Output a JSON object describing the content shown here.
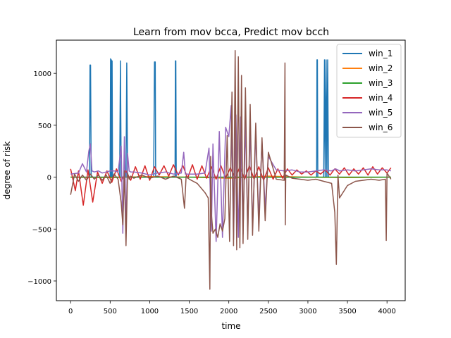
{
  "chart_data": {
    "type": "line",
    "title": "Learn from mov bcca, Predict mov bcch",
    "xlabel": "time",
    "ylabel": "degree of risk",
    "xlim": [
      -180,
      4230
    ],
    "ylim": [
      -1190,
      1320
    ],
    "xticks": [
      0,
      500,
      1000,
      1500,
      2000,
      2500,
      3000,
      3500,
      4000
    ],
    "yticks": [
      -1000,
      -500,
      0,
      500,
      1000
    ],
    "xtick_labels": [
      "0",
      "500",
      "1000",
      "1500",
      "2000",
      "2500",
      "3000",
      "3500",
      "4000"
    ],
    "ytick_labels": [
      "−1000",
      "−500",
      "0",
      "500",
      "1000"
    ],
    "grid": false,
    "legend_position": "top-right",
    "series": [
      {
        "name": "win_1",
        "color": "#1f77b4",
        "x": [
          0,
          240,
          245,
          252,
          260,
          500,
          505,
          510,
          515,
          520,
          525,
          530,
          620,
          630,
          640,
          700,
          710,
          720,
          1050,
          1060,
          1065,
          1070,
          1075,
          1320,
          1325,
          1330,
          1335,
          3110,
          3115,
          3120,
          3125,
          3200,
          3210,
          3220,
          3230,
          3240,
          3250,
          3260,
          4050
        ],
        "y": [
          0,
          0,
          1080,
          1080,
          0,
          0,
          1140,
          0,
          1130,
          0,
          1120,
          0,
          0,
          1120,
          0,
          0,
          1100,
          0,
          0,
          1110,
          1110,
          1110,
          0,
          0,
          1120,
          1120,
          0,
          0,
          1130,
          1130,
          0,
          0,
          1130,
          0,
          1130,
          0,
          1130,
          0,
          0
        ]
      },
      {
        "name": "win_2",
        "color": "#ff7f0e",
        "x": [
          0,
          500,
          1000,
          1500,
          2000,
          2500,
          3000,
          3500,
          4050
        ],
        "y": [
          0,
          -5,
          5,
          0,
          -10,
          10,
          0,
          -5,
          0
        ]
      },
      {
        "name": "win_3",
        "color": "#2ca02c",
        "x": [
          0,
          1000,
          2000,
          3000,
          4050
        ],
        "y": [
          0,
          0,
          0,
          0,
          0
        ]
      },
      {
        "name": "win_4",
        "color": "#d62728",
        "x": [
          0,
          60,
          100,
          160,
          220,
          280,
          340,
          400,
          460,
          520,
          580,
          640,
          700,
          760,
          820,
          880,
          940,
          1000,
          1060,
          1120,
          1180,
          1240,
          1300,
          1360,
          1420,
          1480,
          1540,
          1600,
          1660,
          1720,
          1780,
          1840,
          1900,
          1960,
          2020,
          2080,
          2140,
          2200,
          2260,
          2320,
          2380,
          2440,
          2500,
          2560,
          2620,
          2680,
          2740,
          2800,
          2860,
          2920,
          2980,
          3040,
          3100,
          3160,
          3220,
          3280,
          3340,
          3400,
          3460,
          3520,
          3580,
          3640,
          3700,
          3760,
          3820,
          3880,
          3940,
          4000,
          4050
        ],
        "y": [
          80,
          -130,
          60,
          -270,
          70,
          -240,
          50,
          -60,
          60,
          -50,
          80,
          -40,
          60,
          -30,
          100,
          -20,
          110,
          -30,
          100,
          20,
          110,
          10,
          120,
          20,
          110,
          -10,
          120,
          -20,
          110,
          -10,
          100,
          -20,
          110,
          -10,
          90,
          -10,
          100,
          -20,
          110,
          -20,
          100,
          -30,
          90,
          -20,
          80,
          -10,
          80,
          20,
          70,
          30,
          60,
          20,
          60,
          30,
          70,
          20,
          80,
          30,
          90,
          20,
          80,
          30,
          90,
          20,
          100,
          30,
          90,
          40,
          90
        ]
      },
      {
        "name": "win_5",
        "color": "#9467bd",
        "x": [
          0,
          100,
          150,
          200,
          230,
          250,
          270,
          300,
          350,
          400,
          450,
          500,
          550,
          600,
          640,
          660,
          680,
          700,
          720,
          740,
          760,
          800,
          900,
          1000,
          1100,
          1200,
          1300,
          1400,
          1430,
          1450,
          1500,
          1600,
          1700,
          1750,
          1780,
          1800,
          1840,
          1880,
          1920,
          1960,
          2000,
          2030,
          2060,
          2090,
          2120,
          2150,
          2180,
          2210,
          2240,
          2270,
          2300,
          2340,
          2380,
          2420,
          2460,
          2500,
          2600,
          2700,
          2800,
          2900,
          3000,
          3100,
          3200,
          3300,
          3350,
          3380,
          3400,
          3500,
          3600,
          3700,
          3800,
          3900,
          4000,
          4050
        ],
        "y": [
          30,
          40,
          130,
          50,
          250,
          320,
          60,
          50,
          60,
          40,
          50,
          60,
          60,
          50,
          300,
          -540,
          390,
          -520,
          230,
          60,
          50,
          50,
          40,
          20,
          40,
          50,
          30,
          40,
          240,
          30,
          30,
          30,
          40,
          280,
          -520,
          320,
          -620,
          440,
          -580,
          480,
          390,
          690,
          -600,
          600,
          -580,
          580,
          -550,
          540,
          -520,
          500,
          -480,
          420,
          -400,
          340,
          -300,
          200,
          70,
          60,
          70,
          50,
          50,
          60,
          70,
          60,
          80,
          70,
          60,
          70,
          60,
          70,
          80,
          70,
          70,
          60
        ]
      },
      {
        "name": "win_6",
        "color": "#8c564b",
        "x": [
          0,
          50,
          100,
          150,
          200,
          250,
          300,
          350,
          400,
          450,
          500,
          550,
          600,
          640,
          660,
          680,
          700,
          720,
          740,
          760,
          800,
          900,
          1000,
          1100,
          1200,
          1300,
          1400,
          1440,
          1460,
          1500,
          1600,
          1700,
          1740,
          1760,
          1770,
          1780,
          1800,
          1830,
          1860,
          1890,
          1920,
          1950,
          1980,
          2010,
          2040,
          2060,
          2080,
          2100,
          2120,
          2140,
          2160,
          2180,
          2210,
          2240,
          2270,
          2300,
          2340,
          2380,
          2420,
          2460,
          2500,
          2600,
          2700,
          2710,
          2715,
          2720,
          2800,
          2900,
          3000,
          3100,
          3200,
          3300,
          3340,
          3360,
          3380,
          3400,
          3500,
          3600,
          3700,
          3800,
          3900,
          3980,
          3990,
          4000,
          4050
        ],
        "y": [
          -170,
          30,
          -40,
          20,
          -30,
          30,
          -20,
          20,
          -30,
          20,
          -60,
          30,
          -20,
          -250,
          -460,
          60,
          -660,
          40,
          -20,
          10,
          -10,
          20,
          -10,
          10,
          -20,
          10,
          -20,
          -300,
          10,
          -20,
          -60,
          -150,
          -200,
          -1080,
          200,
          -350,
          -540,
          -500,
          -580,
          -450,
          -520,
          -400,
          400,
          -620,
          820,
          -660,
          1220,
          -700,
          1160,
          -680,
          980,
          -640,
          860,
          -600,
          700,
          -560,
          520,
          -520,
          380,
          -420,
          240,
          -20,
          -30,
          1100,
          -460,
          20,
          -10,
          -20,
          -30,
          -20,
          -40,
          -60,
          -340,
          -840,
          20,
          -200,
          -80,
          -40,
          -30,
          -20,
          -30,
          -20,
          -610,
          40,
          -20
        ]
      }
    ]
  }
}
